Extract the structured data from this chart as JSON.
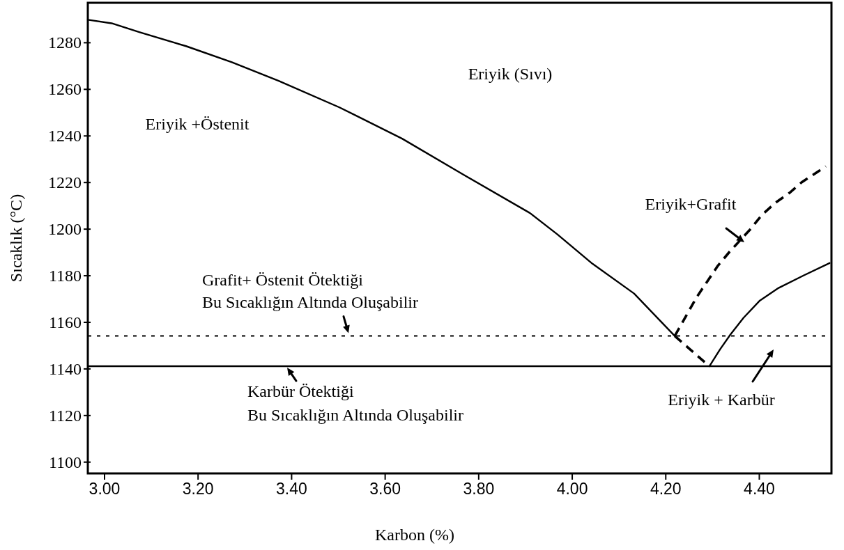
{
  "chart_data": {
    "type": "line",
    "xlabel": "Karbon (%)",
    "ylabel": "Sıcaklık (°C)",
    "xlim": [
      2.965,
      4.555
    ],
    "ylim": [
      1095,
      1297
    ],
    "xticks": [
      {
        "value": 3.0,
        "label": "3.00"
      },
      {
        "value": 3.2,
        "label": "3.20"
      },
      {
        "value": 3.4,
        "label": "3.40"
      },
      {
        "value": 3.6,
        "label": "3.60"
      },
      {
        "value": 3.8,
        "label": "3.80"
      },
      {
        "value": 4.0,
        "label": "4.00"
      },
      {
        "value": 4.2,
        "label": "4.20"
      },
      {
        "value": 4.4,
        "label": "4.40"
      }
    ],
    "yticks": [
      1100,
      1120,
      1140,
      1160,
      1180,
      1200,
      1220,
      1240,
      1260,
      1280
    ],
    "series": [
      {
        "color": "#000000",
        "line_style": "solid",
        "x": [
          2.965,
          3.016,
          3.075,
          3.175,
          3.273,
          3.373,
          3.503,
          3.637,
          3.771,
          3.91,
          3.969,
          4.044,
          4.133,
          4.22
        ],
        "values": [
          1289.7,
          1288.2,
          1284.4,
          1278.4,
          1271.5,
          1263.5,
          1252.1,
          1238.7,
          1222.9,
          1206.8,
          1197.6,
          1185.0,
          1172.2,
          1154.0
        ]
      },
      {
        "color": "#000000",
        "line_style": "dashed",
        "x": [
          4.22,
          4.294
        ],
        "values": [
          1154.0,
          1141.0
        ]
      },
      {
        "color": "#000000",
        "line_style": "dashed",
        "x": [
          4.22,
          4.267,
          4.312,
          4.337,
          4.382,
          4.406,
          4.436,
          4.466,
          4.491,
          4.516,
          4.543
        ],
        "values": [
          1154.0,
          1170.7,
          1184.1,
          1190.1,
          1199.9,
          1205.9,
          1211.3,
          1215.5,
          1219.9,
          1223.2,
          1226.8
        ]
      },
      {
        "color": "#000000",
        "line_style": "solid",
        "x": [
          4.294,
          4.317,
          4.339,
          4.367,
          4.402,
          4.442,
          4.496,
          4.551
        ],
        "values": [
          1141.0,
          1148.3,
          1154.6,
          1161.8,
          1169.2,
          1174.6,
          1180.0,
          1185.3
        ]
      }
    ],
    "ref_lines": [
      {
        "axis": "y",
        "value": 1154,
        "label": "Grafit+ Östenit Ötektiği\nBu Sıcaklığın Altında Oluşabilir",
        "color": "#000000",
        "line_style": "dotted"
      },
      {
        "axis": "y",
        "value": 1141,
        "label": "Karbür Ötektiği\nBu Sıcaklığın Altında Oluşabilir",
        "color": "#000000",
        "line_style": "solid"
      }
    ],
    "annotations": [
      "Eriyik (Sıvı)",
      "Eriyik +Östenit",
      "Eriyik+Grafit",
      "Eriyik + Karbür"
    ]
  }
}
